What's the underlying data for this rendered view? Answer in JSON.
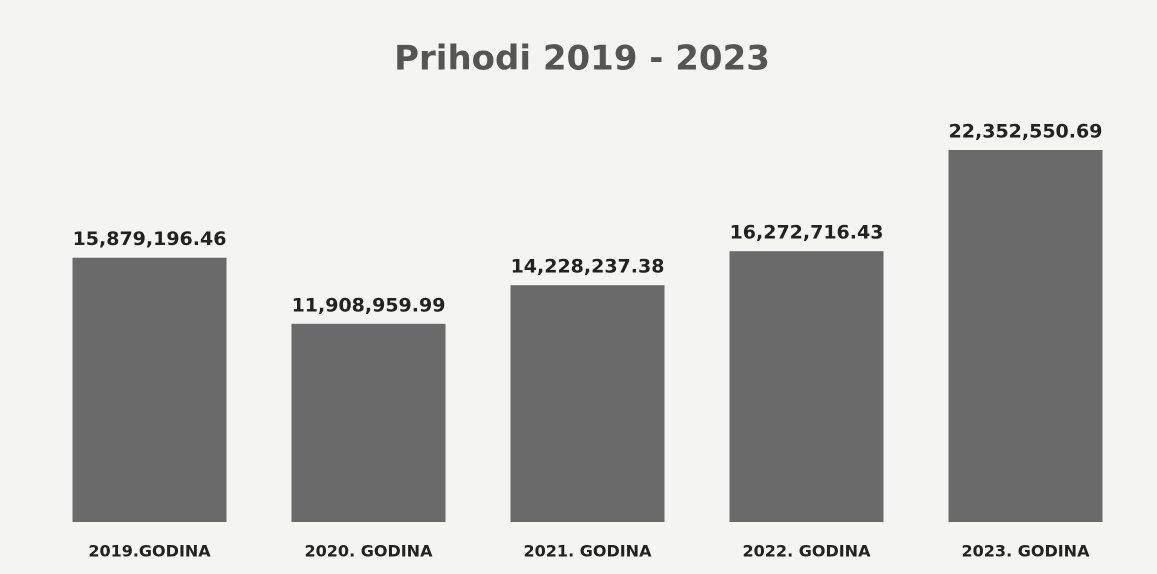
{
  "chart_data": {
    "type": "bar",
    "title": "Prihodi 2019 - 2023",
    "categories": [
      "2019.GODINA",
      "2020. GODINA",
      "2021. GODINA",
      "2022. GODINA",
      "2023. GODINA"
    ],
    "values": [
      15879196.46,
      11908959.99,
      14228237.38,
      16272716.43,
      22352550.69
    ],
    "value_labels": [
      "15,879,196.46",
      "11,908,959.99",
      "14,228,237.38",
      "16,272,716.43",
      "22,352,550.69"
    ],
    "color": "#6a6a6a"
  }
}
